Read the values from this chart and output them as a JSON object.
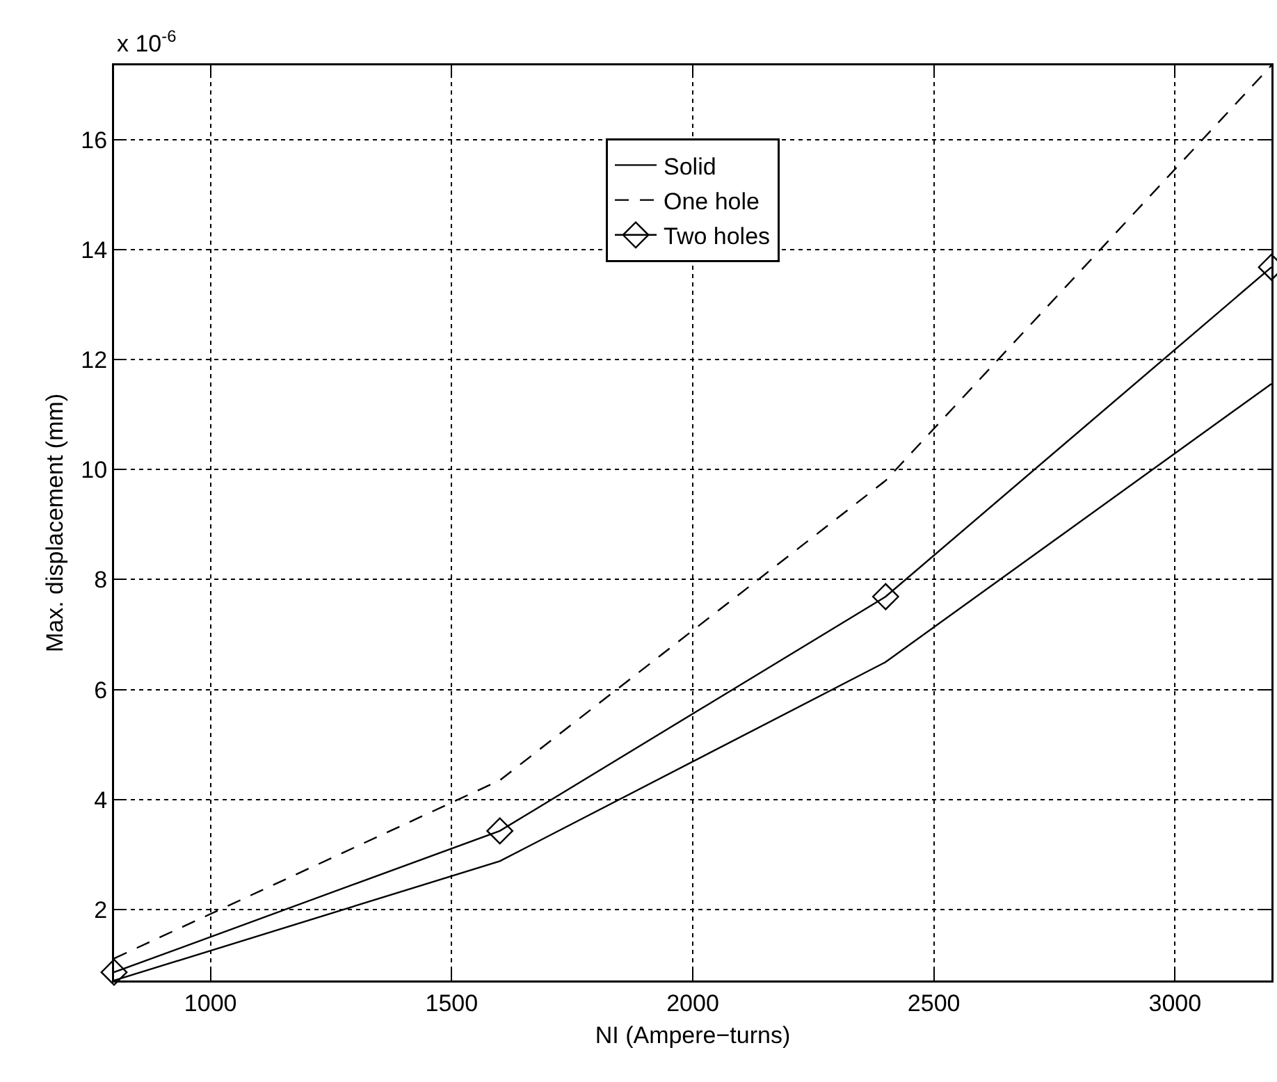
{
  "chart_data": {
    "type": "line",
    "xlabel": "NI (Ampere−turns)",
    "ylabel": "Max. displacement (mm)",
    "annotations": [
      "x 10$^{-6}$"
    ],
    "x": [
      800,
      1600,
      2400,
      3200
    ],
    "series": [
      {
        "name": "Solid",
        "color": "#000000",
        "values": [
          0.71,
          2.88,
          6.5,
          11.56
        ],
        "line_style": "solid",
        "marker": "none"
      },
      {
        "name": "One hole",
        "color": "#000000",
        "values": [
          1.11,
          4.35,
          9.8,
          17.35
        ],
        "line_style": "dashed",
        "marker": "none"
      },
      {
        "name": "Two holes",
        "color": "#000000",
        "values": [
          0.86,
          3.43,
          7.69,
          13.68
        ],
        "line_style": "solid",
        "marker": "diamond"
      }
    ],
    "xlim": [
      800,
      3200
    ],
    "xticks": [
      1000,
      1500,
      2000,
      2500,
      3000
    ],
    "ylim": [
      0.71,
      17.35
    ],
    "yticks": [
      2,
      4,
      6,
      8,
      10,
      12,
      14,
      16
    ],
    "grid": true,
    "legend": "top"
  }
}
